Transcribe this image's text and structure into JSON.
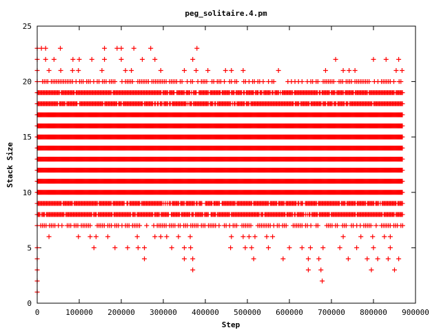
{
  "chart_data": {
    "type": "scatter",
    "title": "peg_solitaire.4.pm",
    "xlabel": "Step",
    "ylabel": "Stack Size",
    "xlim": [
      0,
      900000
    ],
    "ylim": [
      0,
      25
    ],
    "xticks": [
      0,
      100000,
      200000,
      300000,
      400000,
      500000,
      600000,
      700000,
      800000,
      900000
    ],
    "yticks": [
      0,
      5,
      10,
      15,
      20,
      25
    ],
    "grid": false,
    "legend": "none",
    "marker": "plus",
    "marker_color": "#ff0000",
    "x_max_data": 870000,
    "series": [
      {
        "points_note": "",
        "dense_bands": [
          {
            "y": 7,
            "x_ranges": [
              [
                0,
                870000
              ]
            ],
            "density": "medium"
          },
          {
            "y": 8,
            "x_ranges": [
              [
                0,
                870000
              ]
            ],
            "density": "high"
          },
          {
            "y": 9,
            "x_ranges": [
              [
                0,
                870000
              ]
            ],
            "density": "high"
          },
          {
            "y": 10,
            "x_ranges": [
              [
                0,
                870000
              ]
            ],
            "density": "full"
          },
          {
            "y": 11,
            "x_ranges": [
              [
                0,
                870000
              ]
            ],
            "density": "full"
          },
          {
            "y": 12,
            "x_ranges": [
              [
                0,
                870000
              ]
            ],
            "density": "full"
          },
          {
            "y": 13,
            "x_ranges": [
              [
                0,
                870000
              ]
            ],
            "density": "full"
          },
          {
            "y": 14,
            "x_ranges": [
              [
                0,
                870000
              ]
            ],
            "density": "full"
          },
          {
            "y": 15,
            "x_ranges": [
              [
                0,
                870000
              ]
            ],
            "density": "full"
          },
          {
            "y": 16,
            "x_ranges": [
              [
                0,
                870000
              ]
            ],
            "density": "full"
          },
          {
            "y": 17,
            "x_ranges": [
              [
                0,
                870000
              ]
            ],
            "density": "full"
          },
          {
            "y": 18,
            "x_ranges": [
              [
                0,
                870000
              ]
            ],
            "density": "high"
          },
          {
            "y": 19,
            "x_ranges": [
              [
                0,
                870000
              ]
            ],
            "density": "high"
          },
          {
            "y": 20,
            "x_ranges": [
              [
                0,
                870000
              ]
            ],
            "density": "medium"
          },
          {
            "y": 21,
            "x_ranges": [
              [
                0,
                870000
              ]
            ],
            "density": "low"
          },
          {
            "y": 6,
            "x_ranges": [
              [
                0,
                870000
              ]
            ],
            "density": "low"
          }
        ],
        "sparse_points": [
          [
            0,
            1
          ],
          [
            0,
            2
          ],
          [
            0,
            3
          ],
          [
            0,
            4
          ],
          [
            0,
            5
          ],
          [
            0,
            23
          ],
          [
            10000,
            23
          ],
          [
            20000,
            23
          ],
          [
            55000,
            23
          ],
          [
            160000,
            23
          ],
          [
            190000,
            23
          ],
          [
            200000,
            23
          ],
          [
            230000,
            23
          ],
          [
            270000,
            23
          ],
          [
            380000,
            23
          ],
          [
            0,
            22
          ],
          [
            20000,
            22
          ],
          [
            40000,
            22
          ],
          [
            85000,
            22
          ],
          [
            100000,
            22
          ],
          [
            130000,
            22
          ],
          [
            160000,
            22
          ],
          [
            200000,
            22
          ],
          [
            250000,
            22
          ],
          [
            280000,
            22
          ],
          [
            370000,
            22
          ],
          [
            710000,
            22
          ],
          [
            800000,
            22
          ],
          [
            830000,
            22
          ],
          [
            860000,
            22
          ],
          [
            135000,
            5
          ],
          [
            185000,
            5
          ],
          [
            215000,
            5
          ],
          [
            240000,
            5
          ],
          [
            255000,
            5
          ],
          [
            320000,
            5
          ],
          [
            350000,
            5
          ],
          [
            365000,
            5
          ],
          [
            460000,
            5
          ],
          [
            495000,
            5
          ],
          [
            510000,
            5
          ],
          [
            550000,
            5
          ],
          [
            600000,
            5
          ],
          [
            630000,
            5
          ],
          [
            650000,
            5
          ],
          [
            680000,
            5
          ],
          [
            720000,
            5
          ],
          [
            760000,
            5
          ],
          [
            800000,
            5
          ],
          [
            840000,
            5
          ],
          [
            255000,
            4
          ],
          [
            350000,
            4
          ],
          [
            370000,
            4
          ],
          [
            515000,
            4
          ],
          [
            585000,
            4
          ],
          [
            645000,
            4
          ],
          [
            670000,
            4
          ],
          [
            740000,
            4
          ],
          [
            785000,
            4
          ],
          [
            810000,
            4
          ],
          [
            835000,
            4
          ],
          [
            860000,
            4
          ],
          [
            370000,
            3
          ],
          [
            645000,
            3
          ],
          [
            675000,
            3
          ],
          [
            795000,
            3
          ],
          [
            850000,
            3
          ],
          [
            678000,
            2
          ]
        ]
      }
    ]
  }
}
